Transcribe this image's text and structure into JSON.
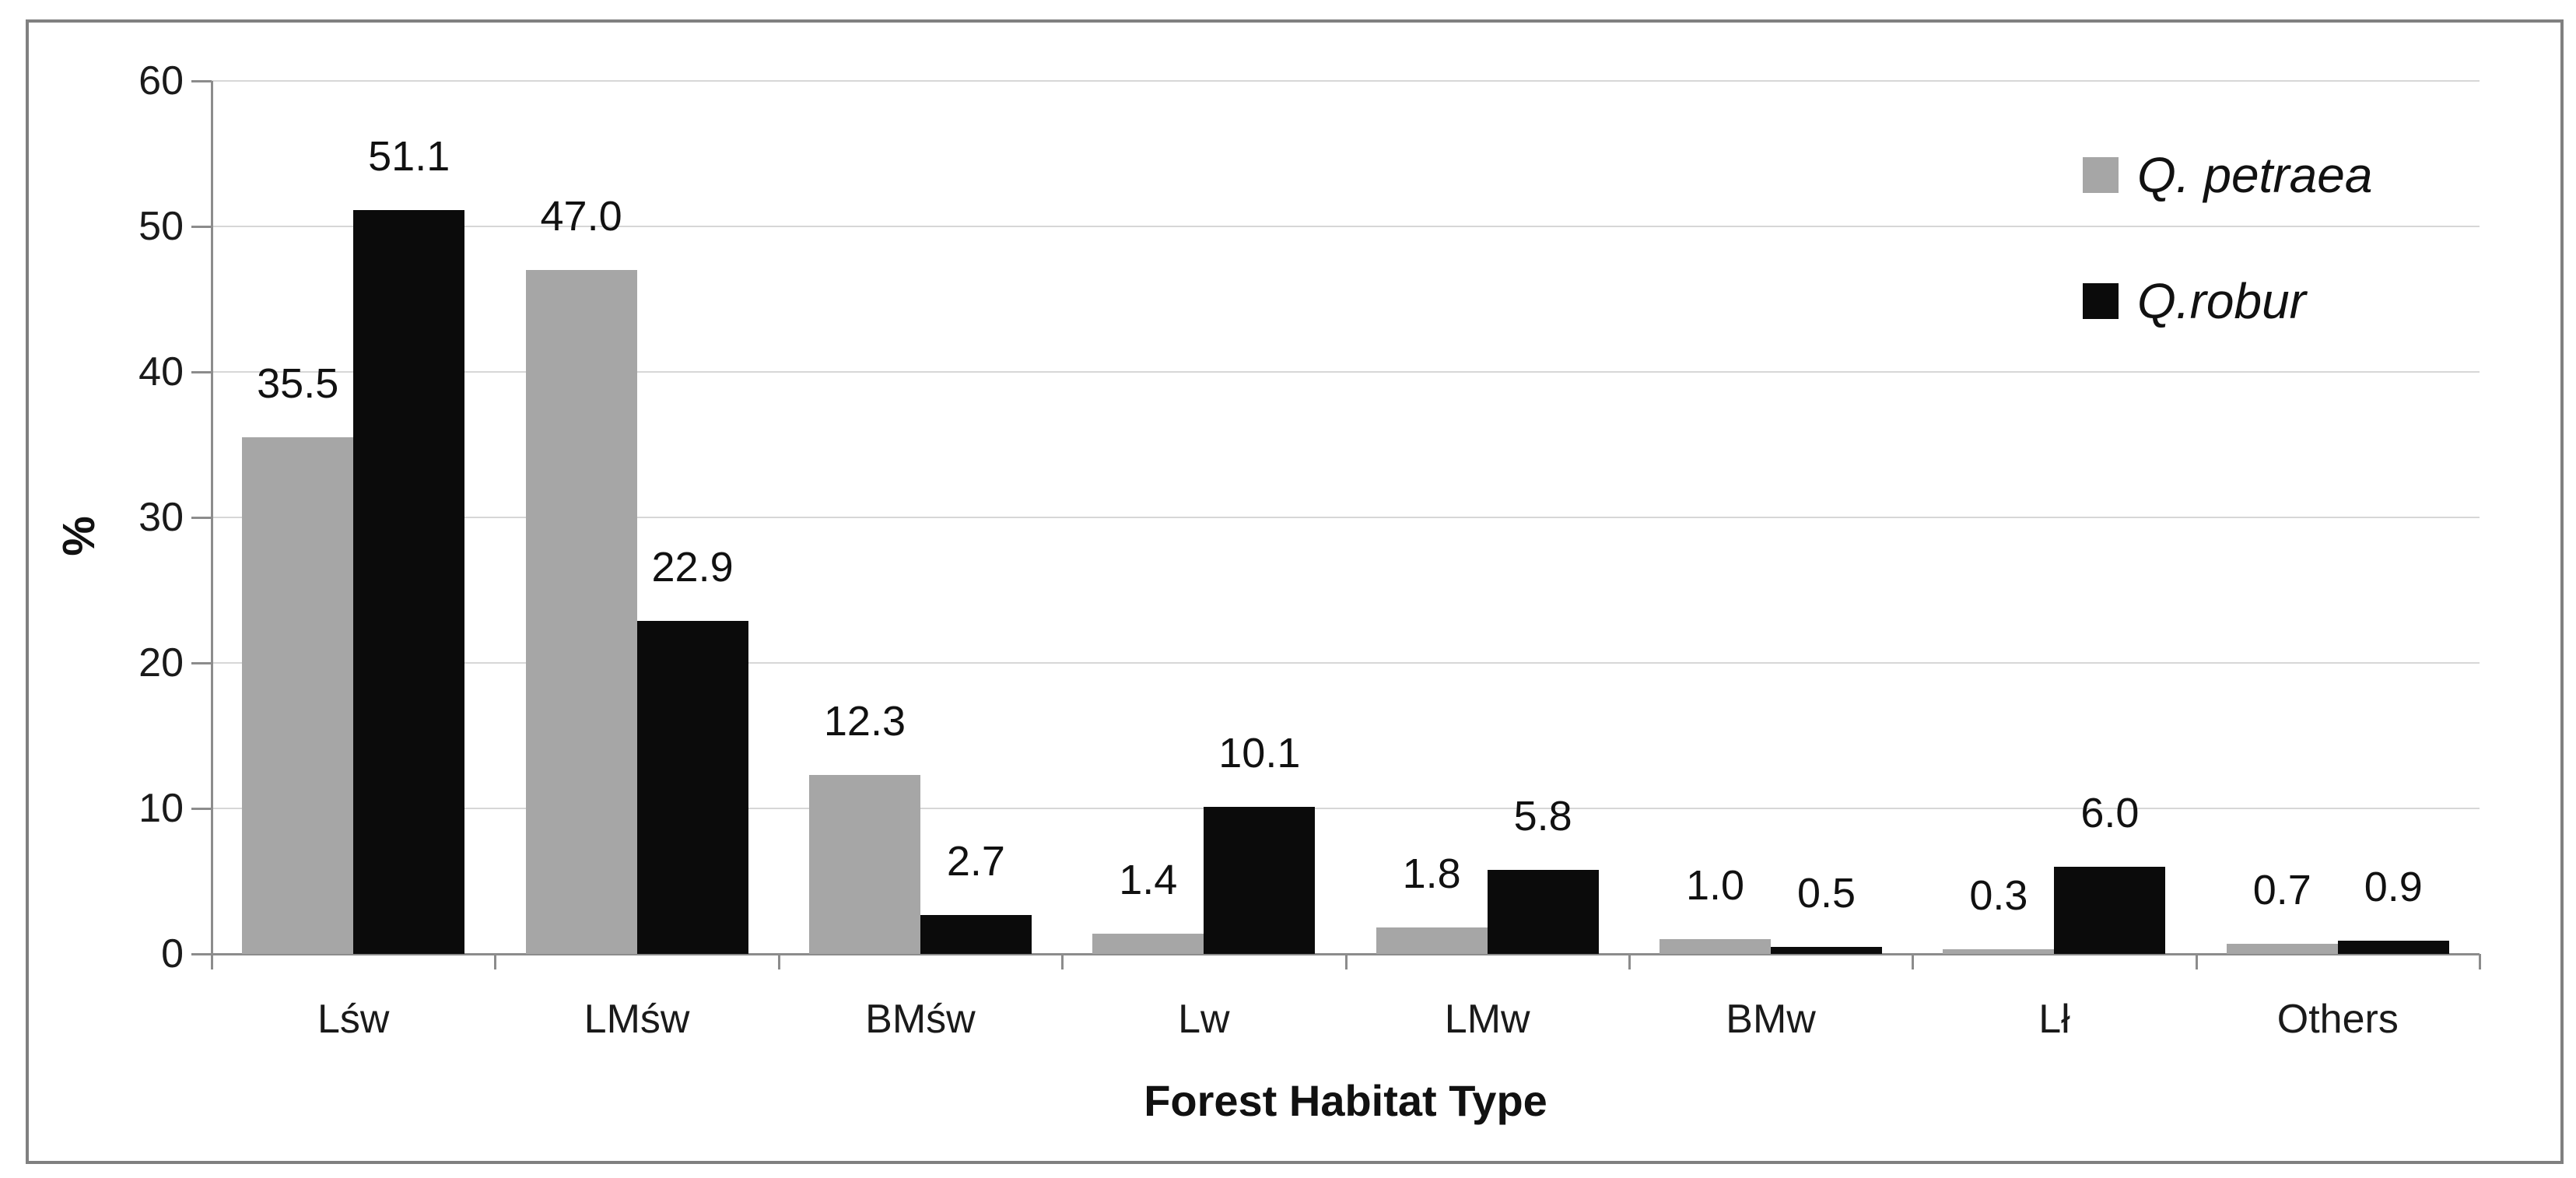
{
  "chart_data": {
    "type": "bar",
    "categories": [
      "Lśw",
      "LMśw",
      "BMśw",
      "Lw",
      "LMw",
      "BMw",
      "Lł",
      "Others"
    ],
    "series": [
      {
        "name": "Q. petraea",
        "color": "#a6a6a6",
        "values": [
          35.5,
          47.0,
          12.3,
          1.4,
          1.8,
          1.0,
          0.3,
          0.7
        ]
      },
      {
        "name": "Q.robur",
        "color": "#0b0b0b",
        "values": [
          51.1,
          22.9,
          2.7,
          10.1,
          5.8,
          0.5,
          6.0,
          0.9
        ]
      }
    ],
    "title": "",
    "xlabel": "Forest Habitat Type",
    "ylabel": "%",
    "ylim": [
      0,
      60
    ],
    "ytick_step": 10,
    "grid": true,
    "legend_position": "upper right",
    "value_labels": true,
    "value_label_format": "one_decimal"
  },
  "style": {
    "frame_border_color": "#808080",
    "gridline_color": "#d7d7d7",
    "axis_color": "#8c8c8c",
    "text_color": "#111111",
    "background": "#ffffff"
  }
}
